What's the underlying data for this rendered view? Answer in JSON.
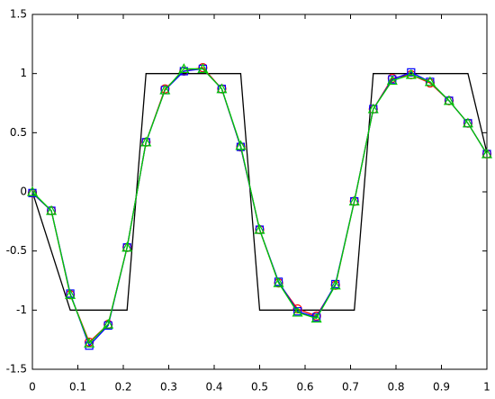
{
  "chart_data": {
    "type": "line",
    "xlim": [
      0,
      1
    ],
    "ylim": [
      -1.5,
      1.5
    ],
    "xticks": [
      0,
      0.1,
      0.2,
      0.3,
      0.4,
      0.5,
      0.6,
      0.7,
      0.8,
      0.9,
      1
    ],
    "yticks": [
      -1.5,
      -1,
      -0.5,
      0,
      0.5,
      1,
      1.5
    ],
    "series": [
      {
        "color": "#000000",
        "marker": "none",
        "x": [
          0,
          0.0833,
          0.2083,
          0.25,
          0.4583,
          0.5,
          0.7083,
          0.75,
          0.9583,
          1
        ],
        "values": [
          0,
          -1,
          -1,
          1,
          1,
          -1,
          -1,
          1,
          1,
          0.33
        ]
      },
      {
        "color": "#ff0000",
        "marker": "circle",
        "x": [
          0,
          0.0417,
          0.0833,
          0.125,
          0.1667,
          0.2083,
          0.25,
          0.2917,
          0.3333,
          0.375,
          0.4167,
          0.4583,
          0.5,
          0.5417,
          0.5833,
          0.625,
          0.6667,
          0.7083,
          0.75,
          0.7917,
          0.8333,
          0.875,
          0.9167,
          0.9583,
          1
        ],
        "values": [
          -0.01,
          -0.16,
          -0.87,
          -1.27,
          -1.12,
          -0.47,
          0.42,
          0.87,
          1.02,
          1.05,
          0.87,
          0.38,
          -0.32,
          -0.77,
          -0.99,
          -1.05,
          -0.79,
          -0.08,
          0.7,
          0.96,
          0.99,
          0.92,
          0.77,
          0.58,
          0.32
        ]
      },
      {
        "color": "#0000ff",
        "marker": "square",
        "x": [
          0,
          0.0417,
          0.0833,
          0.125,
          0.1667,
          0.2083,
          0.25,
          0.2917,
          0.3333,
          0.375,
          0.4167,
          0.4583,
          0.5,
          0.5417,
          0.5833,
          0.625,
          0.6667,
          0.7083,
          0.75,
          0.7917,
          0.8333,
          0.875,
          0.9167,
          0.9583,
          1
        ],
        "values": [
          -0.01,
          -0.16,
          -0.86,
          -1.3,
          -1.13,
          -0.47,
          0.42,
          0.86,
          1.02,
          1.04,
          0.87,
          0.38,
          -0.32,
          -0.76,
          -1.01,
          -1.06,
          -0.78,
          -0.08,
          0.7,
          0.95,
          1.01,
          0.93,
          0.77,
          0.58,
          0.32
        ]
      },
      {
        "color": "#00cc00",
        "marker": "triangle",
        "x": [
          0,
          0.0417,
          0.0833,
          0.125,
          0.1667,
          0.2083,
          0.25,
          0.2917,
          0.3333,
          0.375,
          0.4167,
          0.4583,
          0.5,
          0.5417,
          0.5833,
          0.625,
          0.6667,
          0.7083,
          0.75,
          0.7917,
          0.8333,
          0.875,
          0.9167,
          0.9583,
          1
        ],
        "values": [
          0,
          -0.16,
          -0.87,
          -1.28,
          -1.12,
          -0.47,
          0.42,
          0.86,
          1.04,
          1.04,
          0.87,
          0.39,
          -0.32,
          -0.77,
          -1.02,
          -1.07,
          -0.79,
          -0.08,
          0.7,
          0.94,
          0.99,
          0.93,
          0.77,
          0.58,
          0.32
        ]
      }
    ]
  }
}
